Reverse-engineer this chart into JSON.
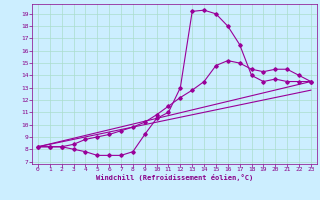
{
  "xlabel": "Windchill (Refroidissement éolien,°C)",
  "ylabel": "",
  "bg_color": "#cceeff",
  "line_color": "#990099",
  "grid_color": "#aaddcc",
  "xlim": [
    -0.5,
    23.5
  ],
  "ylim": [
    6.8,
    19.8
  ],
  "xticks": [
    0,
    1,
    2,
    3,
    4,
    5,
    6,
    7,
    8,
    9,
    10,
    11,
    12,
    13,
    14,
    15,
    16,
    17,
    18,
    19,
    20,
    21,
    22,
    23
  ],
  "yticks": [
    7,
    8,
    9,
    10,
    11,
    12,
    13,
    14,
    15,
    16,
    17,
    18,
    19
  ],
  "line1_x": [
    0,
    1,
    2,
    3,
    4,
    5,
    6,
    7,
    8,
    9,
    10,
    11,
    12,
    13,
    14,
    15,
    16,
    17,
    18,
    19,
    20,
    21,
    22,
    23
  ],
  "line1_y": [
    8.2,
    8.2,
    8.2,
    8.0,
    7.8,
    7.5,
    7.5,
    7.5,
    7.8,
    9.2,
    10.5,
    11.0,
    13.0,
    19.2,
    19.3,
    19.0,
    18.0,
    16.5,
    14.0,
    13.5,
    13.7,
    13.5,
    13.5,
    13.5
  ],
  "line2_x": [
    0,
    1,
    2,
    3,
    4,
    5,
    6,
    7,
    8,
    9,
    10,
    11,
    12,
    13,
    14,
    15,
    16,
    17,
    18,
    19,
    20,
    21,
    22,
    23
  ],
  "line2_y": [
    8.2,
    8.2,
    8.2,
    8.4,
    8.8,
    9.0,
    9.2,
    9.5,
    9.8,
    10.2,
    10.8,
    11.5,
    12.2,
    12.8,
    13.5,
    14.8,
    15.2,
    15.0,
    14.5,
    14.3,
    14.5,
    14.5,
    14.0,
    13.5
  ],
  "line3_x": [
    0,
    23
  ],
  "line3_y": [
    8.2,
    13.5
  ],
  "line4_x": [
    0,
    23
  ],
  "line4_y": [
    8.2,
    12.8
  ]
}
